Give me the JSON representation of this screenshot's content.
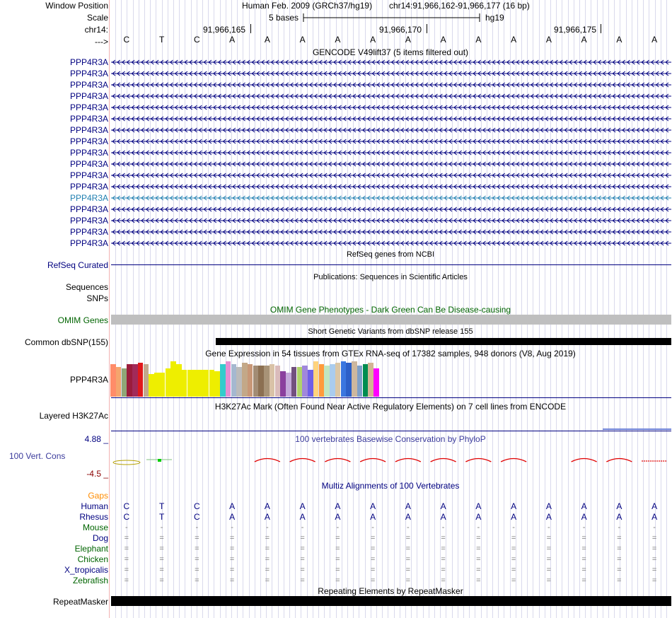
{
  "header": {
    "window_position_label": "Window Position",
    "scale_label": "Scale",
    "chrom_label": "chr14:",
    "strand_label": "--->",
    "assembly": "Human Feb. 2009 (GRCh37/hg19)",
    "position": "chr14:91,966,162-91,966,177 (16 bp)",
    "scale_text": "5 bases",
    "db": "hg19",
    "coords": [
      "91,966,165",
      "91,966,170",
      "91,966,175"
    ]
  },
  "sequence": [
    "C",
    "T",
    "C",
    "A",
    "A",
    "A",
    "A",
    "A",
    "A",
    "A",
    "A",
    "A",
    "A",
    "A",
    "A",
    "A"
  ],
  "tracks": {
    "gencode": {
      "title": "GENCODE V49lift37 (5 items filtered out)",
      "genes": [
        "PPP4R3A",
        "PPP4R3A",
        "PPP4R3A",
        "PPP4R3A",
        "PPP4R3A",
        "PPP4R3A",
        "PPP4R3A",
        "PPP4R3A",
        "PPP4R3A",
        "PPP4R3A",
        "PPP4R3A",
        "PPP4R3A",
        "PPP4R3A",
        "PPP4R3A",
        "PPP4R3A",
        "PPP4R3A",
        "PPP4R3A"
      ],
      "highlight_index": 12,
      "navy": "#000080",
      "teal": "#1f7fb0"
    },
    "refseq": {
      "title": "RefSeq genes from NCBI",
      "label": "RefSeq Curated"
    },
    "publications": {
      "title": "Publications: Sequences in Scientific Articles",
      "label_1": "Sequences",
      "label_2": "SNPs"
    },
    "omim": {
      "title": "OMIM Gene Phenotypes - Dark Green Can Be Disease-causing",
      "label": "OMIM Genes"
    },
    "dbsnp": {
      "title": "Short Genetic Variants from dbSNP release 155",
      "label": "Common dbSNP(155)"
    },
    "gtex": {
      "title": "Gene Expression in 54 tissues from GTEx RNA-seq of 17382 samples, 948 donors (V8, Aug 2019)",
      "label": "PPP4R3A",
      "bars": [
        {
          "color": "#ff8c69",
          "value": 46
        },
        {
          "color": "#f5a56d",
          "value": 42
        },
        {
          "color": "#90a677",
          "value": 40
        },
        {
          "color": "#9b1c3c",
          "value": 46
        },
        {
          "color": "#a22a59",
          "value": 46
        },
        {
          "color": "#e0191b",
          "value": 48
        },
        {
          "color": "#c2a88c",
          "value": 46
        },
        {
          "color": "#eeee00",
          "value": 32
        },
        {
          "color": "#eeee00",
          "value": 34
        },
        {
          "color": "#eeee00",
          "value": 34
        },
        {
          "color": "#eeee00",
          "value": 40
        },
        {
          "color": "#eeee00",
          "value": 50
        },
        {
          "color": "#eeee00",
          "value": 46
        },
        {
          "color": "#eeee00",
          "value": 38
        },
        {
          "color": "#eeee00",
          "value": 38
        },
        {
          "color": "#eeee00",
          "value": 38
        },
        {
          "color": "#eeee00",
          "value": 38
        },
        {
          "color": "#eeee00",
          "value": 38
        },
        {
          "color": "#eeee00",
          "value": 38
        },
        {
          "color": "#eeee00",
          "value": 36
        },
        {
          "color": "#33cccc",
          "value": 46
        },
        {
          "color": "#e68fd1",
          "value": 50
        },
        {
          "color": "#a5b8d0",
          "value": 46
        },
        {
          "color": "#bbbbbb",
          "value": 42
        },
        {
          "color": "#c3a888",
          "value": 48
        },
        {
          "color": "#c89777",
          "value": 46
        },
        {
          "color": "#a28c74",
          "value": 44
        },
        {
          "color": "#8c7052",
          "value": 44
        },
        {
          "color": "#a89377",
          "value": 44
        },
        {
          "color": "#d9c2a7",
          "value": 46
        },
        {
          "color": "#dabbbb",
          "value": 44
        },
        {
          "color": "#8b3f9e",
          "value": 36
        },
        {
          "color": "#c4a8da",
          "value": 34
        },
        {
          "color": "#72507e",
          "value": 42
        },
        {
          "color": "#b0d36b",
          "value": 42
        },
        {
          "color": "#a087dc",
          "value": 44
        },
        {
          "color": "#6e5fe8",
          "value": 38
        },
        {
          "color": "#ffd37c",
          "value": 50
        },
        {
          "color": "#ff9b3c",
          "value": 46
        },
        {
          "color": "#c1e6c1",
          "value": 44
        },
        {
          "color": "#aaccee",
          "value": 46
        },
        {
          "color": "#dbc7a7",
          "value": 48
        },
        {
          "color": "#3a76e0",
          "value": 50
        },
        {
          "color": "#2c5fc8",
          "value": 48
        },
        {
          "color": "#cdb79e",
          "value": 50
        },
        {
          "color": "#7fa0c8",
          "value": 44
        },
        {
          "color": "#008c50",
          "value": 46
        },
        {
          "color": "#d3b593",
          "value": 48
        },
        {
          "color": "#ff00ff",
          "value": 40
        }
      ]
    },
    "h3k27ac": {
      "title": "H3K27Ac Mark (Often Found Near Active Regulatory Elements) on 7 cell lines from ENCODE",
      "label": "Layered H3K27Ac"
    },
    "phylop": {
      "title": "100 vertebrates Basewise Conservation by PhyloP",
      "label": "100 Vert. Cons",
      "max_label": "4.88 _",
      "min_label": "-4.5 _",
      "max_color": "#000080",
      "min_color": "#8b0000"
    },
    "multiz": {
      "title": "Multiz Alignments of 100 Vertebrates",
      "gaps_label": "Gaps",
      "gaps_color": "#ff8c00",
      "species": [
        {
          "name": "Human",
          "color": "#000080",
          "bases": [
            "C",
            "T",
            "C",
            "A",
            "A",
            "A",
            "A",
            "A",
            "A",
            "A",
            "A",
            "A",
            "A",
            "A",
            "A",
            "A"
          ]
        },
        {
          "name": "Rhesus",
          "color": "#000080",
          "bases": [
            "C",
            "T",
            "C",
            "A",
            "A",
            "A",
            "A",
            "A",
            "A",
            "A",
            "A",
            "A",
            "A",
            "A",
            "A",
            "A"
          ]
        },
        {
          "name": "Mouse",
          "color": "#006400",
          "bases": [
            "-",
            "-",
            "-",
            "-",
            "-",
            "-",
            "-",
            "-",
            "-",
            "-",
            "-",
            "-",
            "-",
            "-",
            "-",
            "-"
          ]
        },
        {
          "name": "Dog",
          "color": "#000080",
          "bases": [
            "=",
            "=",
            "=",
            "=",
            "=",
            "=",
            "=",
            "=",
            "=",
            "=",
            "=",
            "=",
            "=",
            "=",
            "=",
            "="
          ]
        },
        {
          "name": "Elephant",
          "color": "#006400",
          "bases": [
            "=",
            "=",
            "=",
            "=",
            "=",
            "=",
            "=",
            "=",
            "=",
            "=",
            "=",
            "=",
            "=",
            "=",
            "=",
            "="
          ]
        },
        {
          "name": "Chicken",
          "color": "#006400",
          "bases": [
            "=",
            "=",
            "=",
            "=",
            "=",
            "=",
            "=",
            "=",
            "=",
            "=",
            "=",
            "=",
            "=",
            "=",
            "=",
            "="
          ]
        },
        {
          "name": "X_tropicalis",
          "color": "#000080",
          "bases": [
            "=",
            "=",
            "=",
            "=",
            "=",
            "=",
            "=",
            "=",
            "=",
            "=",
            "=",
            "=",
            "=",
            "=",
            "=",
            "="
          ]
        },
        {
          "name": "Zebrafish",
          "color": "#006400",
          "bases": [
            "=",
            "=",
            "=",
            "=",
            "=",
            "=",
            "=",
            "=",
            "=",
            "=",
            "=",
            "=",
            "=",
            "=",
            "=",
            "="
          ]
        }
      ]
    },
    "repeatmasker": {
      "title": "Repeating Elements by RepeatMasker",
      "label": "RepeatMasker"
    }
  }
}
